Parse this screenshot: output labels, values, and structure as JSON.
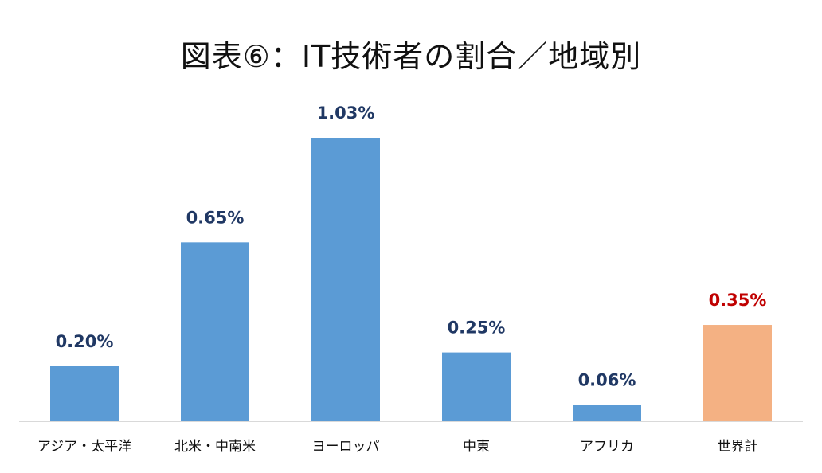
{
  "chart_data": {
    "type": "bar",
    "title": "図表⑥：IT技術者の割合／地域別",
    "categories": [
      "アジア・太平洋",
      "北米・中南米",
      "ヨーロッパ",
      "中東",
      "アフリカ",
      "世界計"
    ],
    "values": [
      0.2,
      0.65,
      1.03,
      0.25,
      0.06,
      0.35
    ],
    "value_labels": [
      "0.20%",
      "0.65%",
      "1.03%",
      "0.25%",
      "0.06%",
      "0.35%"
    ],
    "unit": "%",
    "ylim": [
      0,
      1.03
    ],
    "grid": false,
    "legend": "none",
    "colors": {
      "default_bar": "#5b9bd5",
      "highlight_bar": "#f4b183",
      "default_label": "#203864",
      "highlight_label": "#c00000",
      "axis": "#d9d9d9"
    },
    "highlight_index": 5
  }
}
